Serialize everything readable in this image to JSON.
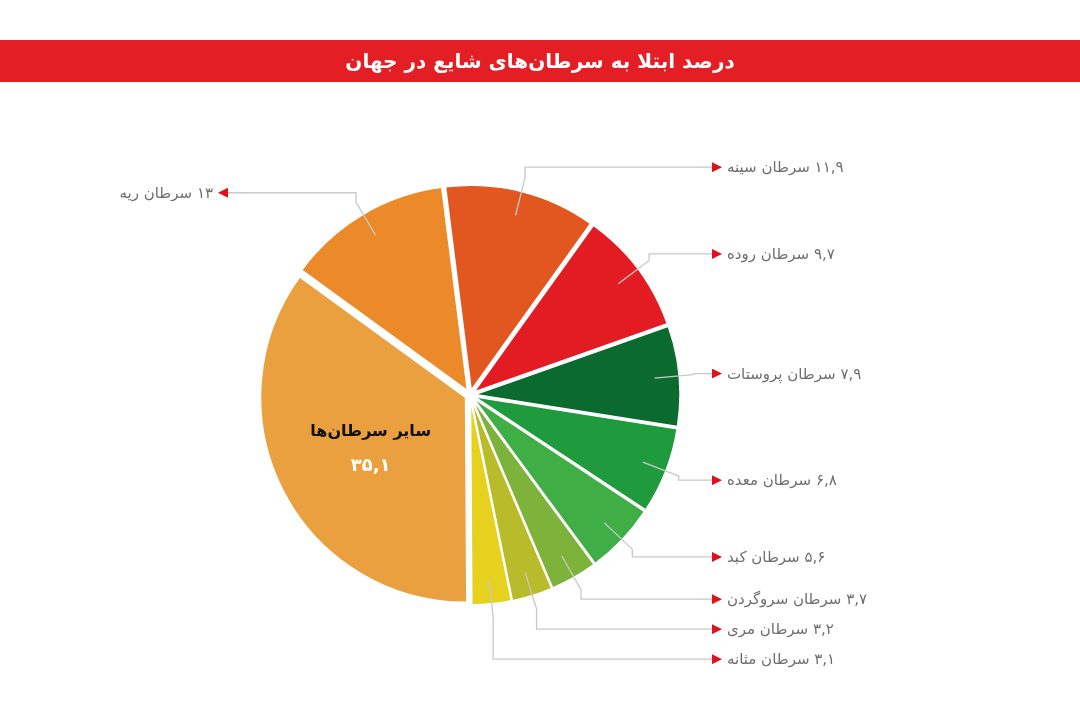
{
  "chart_data": {
    "type": "pie",
    "title": "درصد ابتلا به سرطان‌های شایع در جهان",
    "categories": [
      "سرطان ریه",
      "سرطان سینه",
      "سرطان روده",
      "سرطان پروستات",
      "سرطان معده",
      "سرطان کبد",
      "سرطان سروگردن",
      "سرطان مری",
      "سرطان مثانه",
      "سایر سرطان‌ها"
    ],
    "values": [
      13,
      11.9,
      9.7,
      7.9,
      6.8,
      5.6,
      3.7,
      3.2,
      3.1,
      35.1
    ],
    "value_labels": [
      "۱۳",
      "۱۱,۹",
      "۹,۷",
      "۷,۹",
      "۶,۸",
      "۵,۶",
      "۳,۷",
      "۳,۲",
      "۳,۱",
      "۳۵,۱"
    ],
    "colors": [
      "#ec8a2a",
      "#e2571f",
      "#e31b23",
      "#0b6b2e",
      "#1f9a3c",
      "#3fae45",
      "#7db33a",
      "#b8bb2a",
      "#e6d21e",
      "#eba040"
    ]
  }
}
